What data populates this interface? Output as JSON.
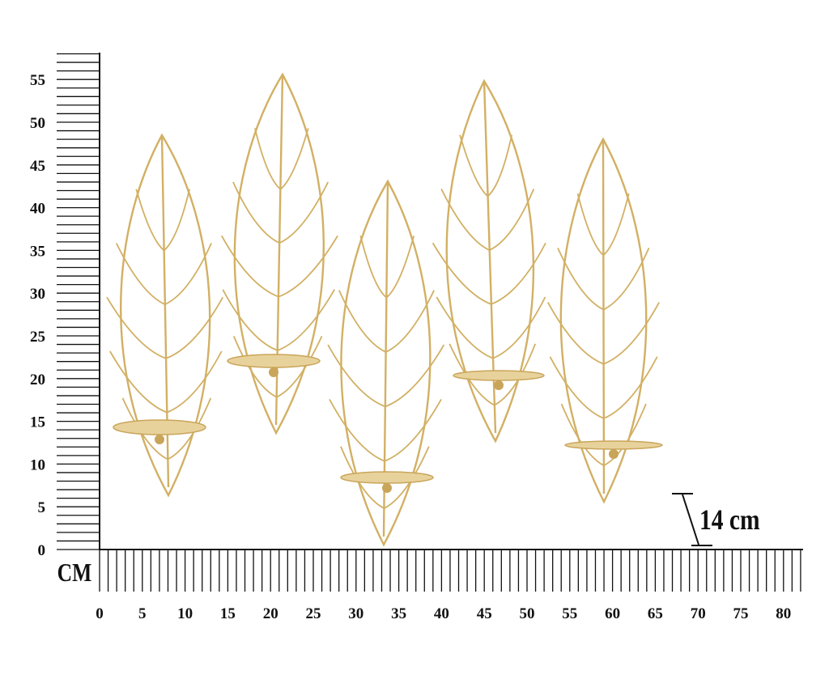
{
  "ruler": {
    "unit": "CM",
    "vertical_labels": [
      0,
      5,
      10,
      15,
      20,
      25,
      30,
      35,
      40,
      45,
      50,
      55
    ],
    "horizontal_labels": [
      0,
      5,
      10,
      15,
      20,
      25,
      30,
      35,
      40,
      45,
      50,
      55,
      60,
      65,
      70,
      75,
      80
    ]
  },
  "depth_label": "14 cm"
}
